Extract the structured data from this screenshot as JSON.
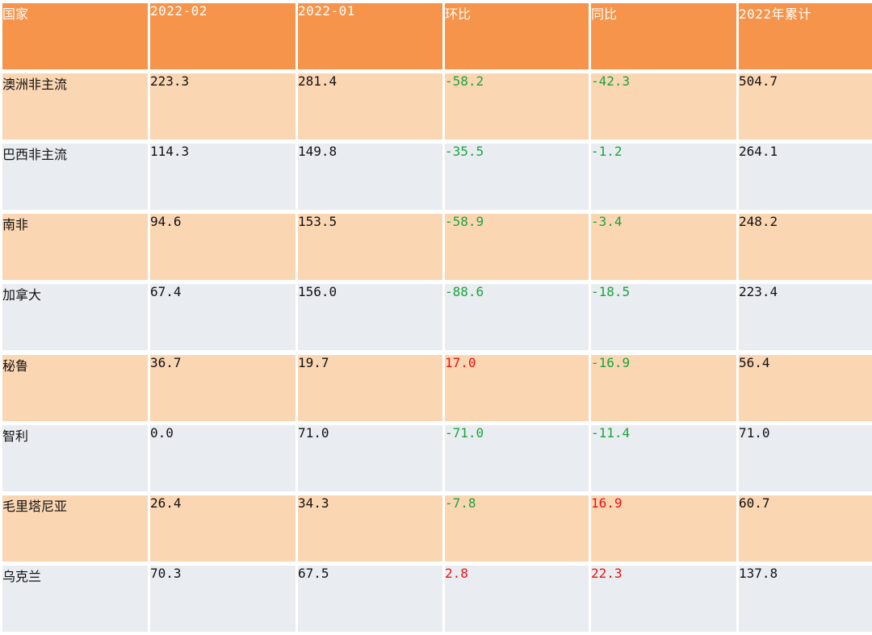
{
  "table": {
    "headers": [
      "国家",
      "2022-02",
      "2022-01",
      "环比",
      "同比",
      "2022年累计"
    ],
    "rows": [
      {
        "country": "澳洲非主流",
        "feb": "223.3",
        "jan": "281.4",
        "mom": "-58.2",
        "yoy": "-42.3",
        "ytd": "504.7"
      },
      {
        "country": "巴西非主流",
        "feb": "114.3",
        "jan": "149.8",
        "mom": "-35.5",
        "yoy": "-1.2",
        "ytd": "264.1"
      },
      {
        "country": "南非",
        "feb": "94.6",
        "jan": "153.5",
        "mom": "-58.9",
        "yoy": "-3.4",
        "ytd": "248.2"
      },
      {
        "country": "加拿大",
        "feb": "67.4",
        "jan": "156.0",
        "mom": "-88.6",
        "yoy": "-18.5",
        "ytd": "223.4"
      },
      {
        "country": "秘鲁",
        "feb": "36.7",
        "jan": "19.7",
        "mom": "17.0",
        "yoy": "-16.9",
        "ytd": "56.4"
      },
      {
        "country": "智利",
        "feb": "0.0",
        "jan": "71.0",
        "mom": "-71.0",
        "yoy": "-11.4",
        "ytd": "71.0"
      },
      {
        "country": "毛里塔尼亚",
        "feb": "26.4",
        "jan": "34.3",
        "mom": "-7.8",
        "yoy": "16.9",
        "ytd": "60.7"
      },
      {
        "country": "乌克兰",
        "feb": "70.3",
        "jan": "67.5",
        "mom": "2.8",
        "yoy": "22.3",
        "ytd": "137.8"
      }
    ]
  },
  "colors": {
    "header_bg": "#f5944a",
    "header_text": "#ffffff",
    "row_odd_bg": "#fbd6b3",
    "row_even_bg": "#e9ecf1",
    "negative_text": "#1aa43c",
    "positive_text": "#ee1111"
  }
}
